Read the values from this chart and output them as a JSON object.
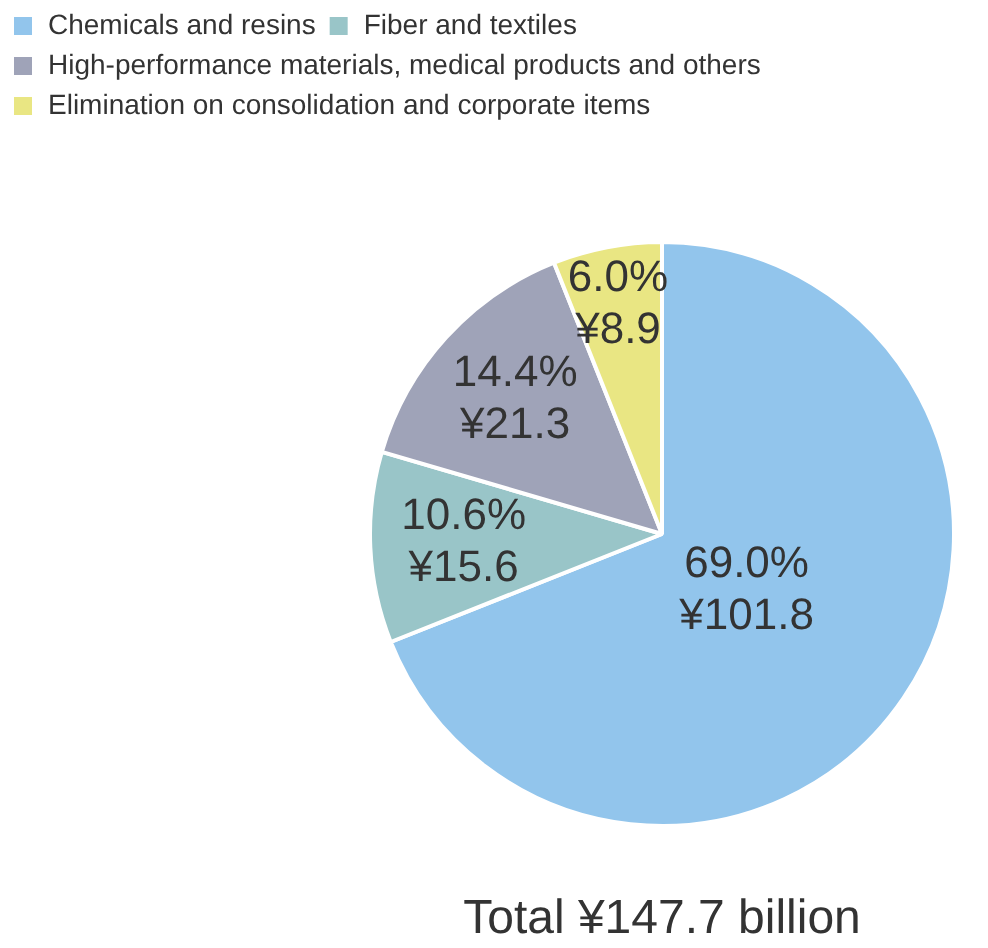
{
  "chart_data": {
    "type": "pie",
    "categories": [
      "Chemicals and resins",
      "Fiber and textiles",
      "High-performance materials, medical products and others",
      "Elimination on consolidation and corporate items"
    ],
    "values": [
      101.8,
      15.6,
      21.3,
      8.9
    ],
    "colors": [
      "#92c5ec",
      "#99c5c8",
      "#9fa3b8",
      "#e9e683"
    ],
    "value_labels": [
      "69.0%\n¥101.8",
      "10.6%\n¥15.6",
      "14.4%\n¥21.3",
      "6.0%\n¥8.9"
    ],
    "legend": "top left",
    "annotations": [
      "Total ¥147.7 billion"
    ]
  }
}
